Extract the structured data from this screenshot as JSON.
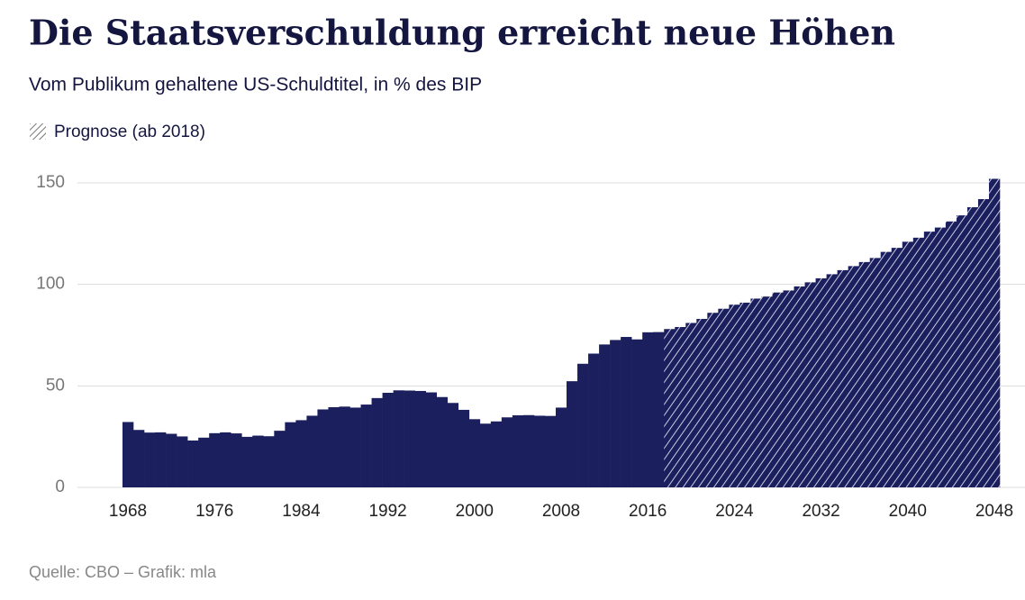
{
  "chart_data": {
    "type": "bar",
    "title": "Die Staatsverschuldung erreicht neue Höhen",
    "subtitle": "Vom Publikum gehaltene US-Schuldtitel, in % des BIP",
    "legend_label": "Prognose (ab 2018)",
    "forecast_from": 2018,
    "source": "Quelle:  CBO – Grafik: mla",
    "color": "#1b1f5e",
    "x": [
      1968,
      1969,
      1970,
      1971,
      1972,
      1973,
      1974,
      1975,
      1976,
      1977,
      1978,
      1979,
      1980,
      1981,
      1982,
      1983,
      1984,
      1985,
      1986,
      1987,
      1988,
      1989,
      1990,
      1991,
      1992,
      1993,
      1994,
      1995,
      1996,
      1997,
      1998,
      1999,
      2000,
      2001,
      2002,
      2003,
      2004,
      2005,
      2006,
      2007,
      2008,
      2009,
      2010,
      2011,
      2012,
      2013,
      2014,
      2015,
      2016,
      2017,
      2018,
      2019,
      2020,
      2021,
      2022,
      2023,
      2024,
      2025,
      2026,
      2027,
      2028,
      2029,
      2030,
      2031,
      2032,
      2033,
      2034,
      2035,
      2036,
      2037,
      2038,
      2039,
      2040,
      2041,
      2042,
      2043,
      2044,
      2045,
      2046,
      2047,
      2048
    ],
    "values": [
      32.2,
      28.3,
      27.0,
      27.1,
      26.4,
      25.1,
      23.1,
      24.5,
      26.7,
      27.1,
      26.6,
      24.9,
      25.5,
      25.2,
      27.9,
      32.1,
      33.1,
      35.3,
      38.4,
      39.5,
      39.8,
      39.3,
      40.8,
      44.0,
      46.6,
      47.8,
      47.7,
      47.5,
      46.8,
      44.5,
      41.6,
      38.2,
      33.6,
      31.4,
      32.5,
      34.5,
      35.5,
      35.6,
      35.3,
      35.2,
      39.3,
      52.3,
      60.9,
      65.9,
      70.4,
      72.6,
      74.1,
      72.9,
      76.4,
      76.5,
      78,
      79,
      81,
      83,
      86,
      88,
      90,
      91,
      93,
      94,
      96,
      97,
      99,
      101,
      103,
      105,
      107,
      109,
      111,
      113,
      116,
      118,
      121,
      123,
      126,
      128,
      131,
      134,
      138,
      142,
      152
    ],
    "xlim": [
      1967.5,
      2048.5
    ],
    "xticks": [
      1968,
      1976,
      1984,
      1992,
      2000,
      2008,
      2016,
      2024,
      2032,
      2040,
      2048
    ],
    "ylim": [
      0,
      150
    ],
    "yticks": [
      0,
      50,
      100,
      150
    ],
    "grid": true
  }
}
